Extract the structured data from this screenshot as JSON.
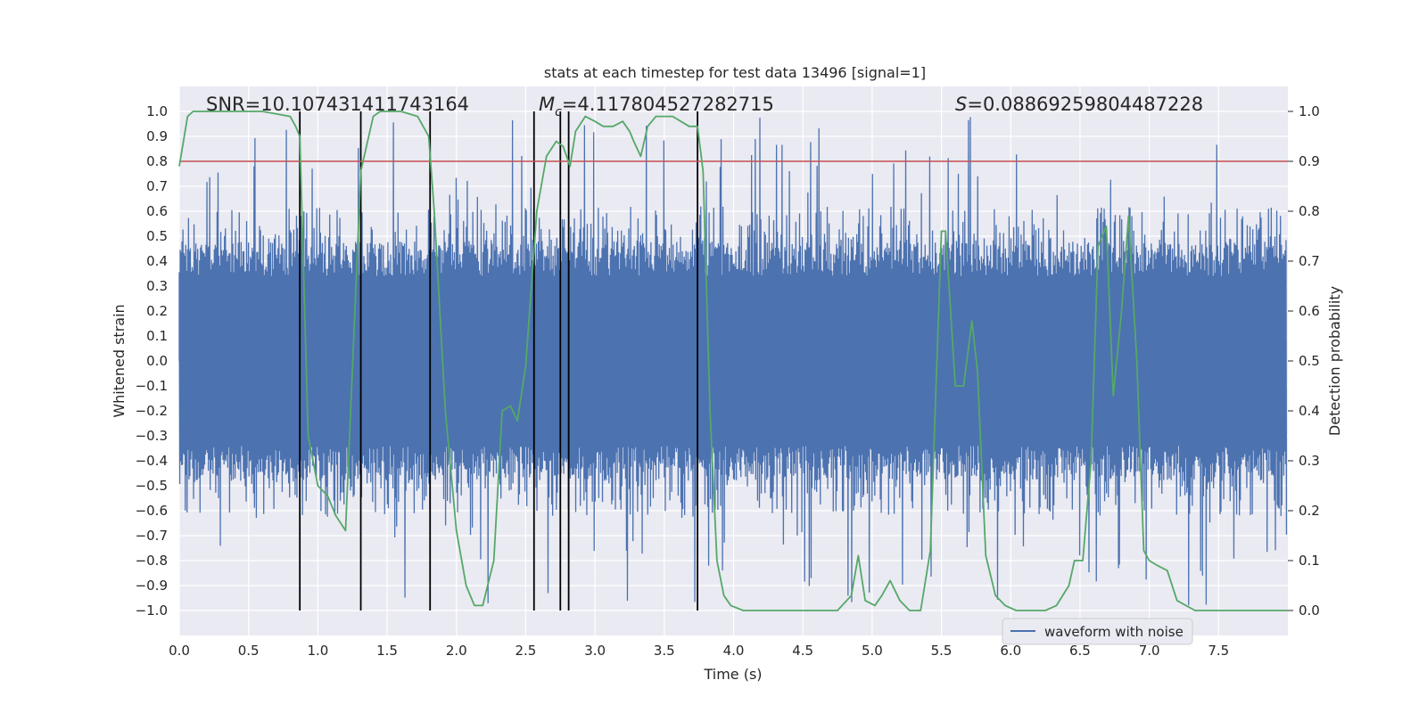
{
  "chart_data": {
    "type": "line",
    "title": "stats at each timestep for test data 13496 [signal=1]",
    "xlabel": "Time (s)",
    "ylabel": "Whitened strain",
    "y2label": "Detection probability",
    "xlim": [
      0.0,
      8.0
    ],
    "ylim": [
      -1.1,
      1.1
    ],
    "y2lim": [
      -0.05,
      1.05
    ],
    "x_ticks": [
      0.0,
      0.5,
      1.0,
      1.5,
      2.0,
      2.5,
      3.0,
      3.5,
      4.0,
      4.5,
      5.0,
      5.5,
      6.0,
      6.5,
      7.0,
      7.5
    ],
    "x_tick_labels": [
      "0.0",
      "0.5",
      "1.0",
      "1.5",
      "2.0",
      "2.5",
      "3.0",
      "3.5",
      "4.0",
      "4.5",
      "5.0",
      "5.5",
      "6.0",
      "6.5",
      "7.0",
      "7.5"
    ],
    "y_ticks": [
      1.0,
      0.9,
      0.8,
      0.7,
      0.6,
      0.5,
      0.4,
      0.3,
      0.2,
      0.1,
      0.0,
      -0.1,
      -0.2,
      -0.3,
      -0.4,
      -0.5,
      -0.6,
      -0.7,
      -0.8,
      -0.9,
      -1.0
    ],
    "y_tick_labels": [
      "1.0",
      "0.9",
      "0.8",
      "0.7",
      "0.6",
      "0.5",
      "0.4",
      "0.3",
      "0.2",
      "0.1",
      "0.0",
      "−0.1",
      "−0.2",
      "−0.3",
      "−0.4",
      "−0.5",
      "−0.6",
      "−0.7",
      "−0.8",
      "−0.9",
      "−1.0"
    ],
    "y2_ticks": [
      1.0,
      0.9,
      0.8,
      0.7,
      0.6,
      0.5,
      0.4,
      0.3,
      0.2,
      0.1,
      0.0
    ],
    "y2_tick_labels": [
      "1.0",
      "0.9",
      "0.8",
      "0.7",
      "0.6",
      "0.5",
      "0.4",
      "0.3",
      "0.2",
      "0.1",
      "0.0"
    ],
    "grid": true,
    "legend": {
      "entries": [
        "waveform with noise"
      ],
      "placement": "bottom-right"
    },
    "annotations": {
      "snr": "SNR=10.107431411743164",
      "mc_symbol": "M",
      "mc_sub": "c",
      "mc_value": "=4.117804527282715",
      "s_symbol": "S",
      "s_value": "=0.08869259804487228"
    },
    "threshold": {
      "value": 0.8,
      "axis": "left",
      "color": "#c44e52"
    },
    "vertical_lines": [
      0.87,
      1.31,
      1.81,
      2.56,
      2.75,
      2.81,
      3.74
    ],
    "vertical_line_range": [
      -1.0,
      1.0
    ],
    "waveform": {
      "name": "waveform with noise",
      "color": "#4c72b0",
      "sample_count": 2400,
      "core_amplitude": 0.4,
      "typical_peak": 0.62,
      "max_peak": 0.98,
      "min_trough": -0.99
    },
    "probability_series": {
      "name": "detection probability",
      "color": "#55a868",
      "axis": "right",
      "x": [
        0.0,
        0.06,
        0.1,
        0.3,
        0.6,
        0.8,
        0.84,
        0.87,
        0.93,
        1.0,
        1.07,
        1.13,
        1.2,
        1.31,
        1.4,
        1.45,
        1.6,
        1.72,
        1.76,
        1.8,
        1.84,
        1.92,
        2.0,
        2.07,
        2.13,
        2.19,
        2.27,
        2.33,
        2.39,
        2.44,
        2.5,
        2.58,
        2.65,
        2.72,
        2.77,
        2.82,
        2.86,
        2.93,
        3.0,
        3.06,
        3.13,
        3.2,
        3.25,
        3.28,
        3.33,
        3.38,
        3.44,
        3.5,
        3.56,
        3.62,
        3.68,
        3.74,
        3.78,
        3.83,
        3.88,
        3.93,
        3.98,
        4.07,
        4.2,
        4.4,
        4.6,
        4.75,
        4.85,
        4.9,
        4.95,
        5.02,
        5.07,
        5.13,
        5.2,
        5.27,
        5.35,
        5.42,
        5.5,
        5.53,
        5.6,
        5.66,
        5.72,
        5.76,
        5.82,
        5.89,
        5.96,
        6.04,
        6.15,
        6.25,
        6.33,
        6.42,
        6.46,
        6.52,
        6.58,
        6.63,
        6.69,
        6.74,
        6.8,
        6.85,
        6.91,
        6.96,
        7.0,
        7.06,
        7.13,
        7.2,
        7.33,
        7.55,
        7.75,
        7.9,
        8.0
      ],
      "values": [
        0.89,
        0.99,
        1.0,
        1.0,
        1.0,
        0.99,
        0.97,
        0.95,
        0.35,
        0.25,
        0.23,
        0.19,
        0.16,
        0.88,
        0.99,
        1.0,
        1.0,
        0.99,
        0.97,
        0.95,
        0.8,
        0.4,
        0.16,
        0.05,
        0.01,
        0.01,
        0.1,
        0.4,
        0.41,
        0.38,
        0.49,
        0.8,
        0.91,
        0.94,
        0.93,
        0.89,
        0.96,
        0.99,
        0.98,
        0.97,
        0.97,
        0.98,
        0.96,
        0.94,
        0.91,
        0.97,
        0.99,
        0.99,
        0.99,
        0.98,
        0.97,
        0.97,
        0.88,
        0.4,
        0.1,
        0.03,
        0.01,
        0.0,
        0.0,
        0.0,
        0.0,
        0.0,
        0.03,
        0.11,
        0.02,
        0.01,
        0.03,
        0.06,
        0.02,
        0.0,
        0.0,
        0.12,
        0.76,
        0.76,
        0.45,
        0.45,
        0.58,
        0.48,
        0.11,
        0.03,
        0.01,
        0.0,
        0.0,
        0.0,
        0.01,
        0.05,
        0.1,
        0.1,
        0.3,
        0.73,
        0.77,
        0.43,
        0.6,
        0.79,
        0.5,
        0.12,
        0.1,
        0.09,
        0.08,
        0.02,
        0.0,
        0.0,
        0.0,
        0.0,
        0.0
      ]
    }
  }
}
